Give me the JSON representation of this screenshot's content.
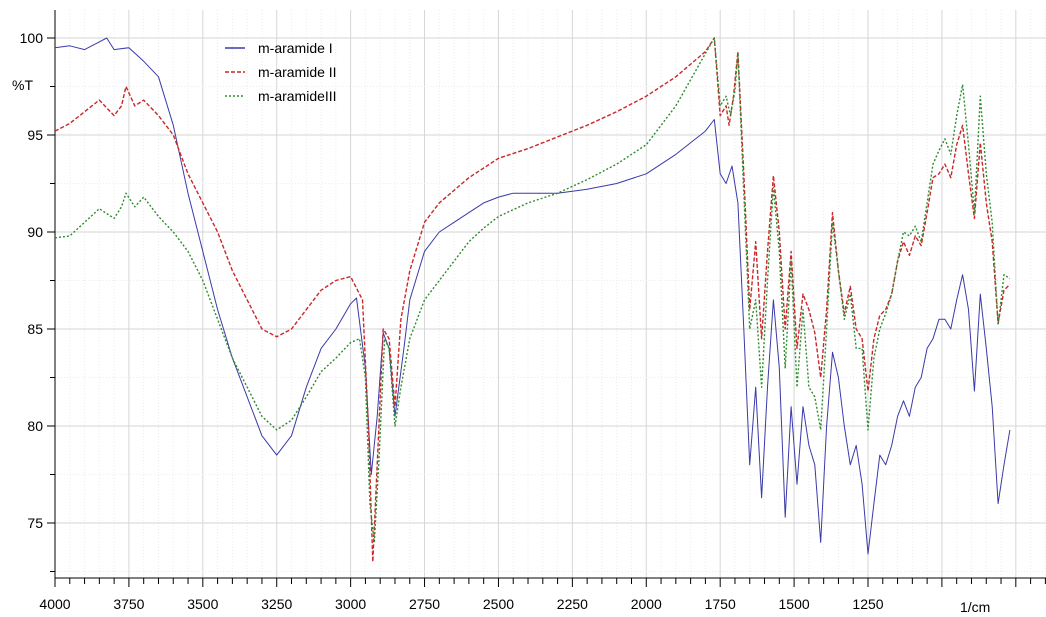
{
  "chart_data": {
    "type": "line",
    "title": "",
    "xlabel": "",
    "ylabel": "%T",
    "x_unit_label": "1/cm",
    "xlim": [
      4000,
      500
    ],
    "ylim": [
      72,
      101.5
    ],
    "x_reversed": true,
    "grid": true,
    "legend_position": "top-left",
    "x_tick_labels": [
      4000,
      3750,
      3500,
      3250,
      3000,
      2750,
      2500,
      2250,
      2000,
      1750,
      1500,
      1250
    ],
    "y_tick_labels": [
      100,
      95,
      90,
      85,
      80,
      75
    ],
    "series": [
      {
        "name": "m-aramide I",
        "color": "#3a3aa8",
        "dash": "solid",
        "points": [
          [
            4000,
            99.5
          ],
          [
            3950,
            99.6
          ],
          [
            3900,
            99.4
          ],
          [
            3850,
            99.8
          ],
          [
            3825,
            100.0
          ],
          [
            3800,
            99.4
          ],
          [
            3750,
            99.5
          ],
          [
            3700,
            98.8
          ],
          [
            3650,
            98.0
          ],
          [
            3600,
            95.5
          ],
          [
            3550,
            92.0
          ],
          [
            3500,
            89.0
          ],
          [
            3450,
            86.0
          ],
          [
            3400,
            83.5
          ],
          [
            3350,
            81.5
          ],
          [
            3300,
            79.5
          ],
          [
            3250,
            78.5
          ],
          [
            3200,
            79.5
          ],
          [
            3150,
            82.0
          ],
          [
            3100,
            84.0
          ],
          [
            3050,
            85.0
          ],
          [
            3000,
            86.3
          ],
          [
            2980,
            86.6
          ],
          [
            2950,
            83.0
          ],
          [
            2930,
            77.5
          ],
          [
            2910,
            80.5
          ],
          [
            2890,
            84.8
          ],
          [
            2870,
            84.0
          ],
          [
            2850,
            80.5
          ],
          [
            2820,
            84.0
          ],
          [
            2800,
            86.5
          ],
          [
            2750,
            89.0
          ],
          [
            2700,
            90.0
          ],
          [
            2650,
            90.5
          ],
          [
            2600,
            91.0
          ],
          [
            2550,
            91.5
          ],
          [
            2500,
            91.8
          ],
          [
            2450,
            92.0
          ],
          [
            2400,
            92.0
          ],
          [
            2300,
            92.0
          ],
          [
            2200,
            92.2
          ],
          [
            2100,
            92.5
          ],
          [
            2000,
            93.0
          ],
          [
            1900,
            94.0
          ],
          [
            1800,
            95.2
          ],
          [
            1770,
            95.8
          ],
          [
            1750,
            93.0
          ],
          [
            1730,
            92.5
          ],
          [
            1710,
            93.4
          ],
          [
            1690,
            91.5
          ],
          [
            1670,
            85.0
          ],
          [
            1650,
            78.0
          ],
          [
            1630,
            82.0
          ],
          [
            1610,
            76.3
          ],
          [
            1590,
            82.0
          ],
          [
            1570,
            86.5
          ],
          [
            1550,
            83.0
          ],
          [
            1530,
            75.3
          ],
          [
            1510,
            81.0
          ],
          [
            1490,
            77.0
          ],
          [
            1470,
            81.0
          ],
          [
            1450,
            79.0
          ],
          [
            1430,
            78.0
          ],
          [
            1410,
            74.0
          ],
          [
            1390,
            80.0
          ],
          [
            1370,
            83.8
          ],
          [
            1350,
            82.5
          ],
          [
            1330,
            80.0
          ],
          [
            1310,
            78.0
          ],
          [
            1290,
            79.0
          ],
          [
            1270,
            77.0
          ],
          [
            1250,
            73.4
          ],
          [
            1230,
            76.0
          ],
          [
            1210,
            78.5
          ],
          [
            1190,
            78.0
          ],
          [
            1170,
            79.0
          ],
          [
            1150,
            80.5
          ],
          [
            1130,
            81.3
          ],
          [
            1110,
            80.5
          ],
          [
            1090,
            82.0
          ],
          [
            1070,
            82.5
          ],
          [
            1050,
            84.0
          ],
          [
            1030,
            84.5
          ],
          [
            1010,
            85.5
          ],
          [
            990,
            85.5
          ],
          [
            970,
            85.0
          ],
          [
            950,
            86.5
          ],
          [
            930,
            87.8
          ],
          [
            910,
            86.0
          ],
          [
            890,
            81.8
          ],
          [
            870,
            86.8
          ],
          [
            850,
            84.0
          ],
          [
            830,
            81.0
          ],
          [
            810,
            76.0
          ],
          [
            790,
            78.0
          ],
          [
            770,
            79.8
          ]
        ]
      },
      {
        "name": "m-aramide II",
        "color": "#c8282a",
        "dash": "4,2",
        "points": [
          [
            4000,
            95.2
          ],
          [
            3950,
            95.6
          ],
          [
            3900,
            96.2
          ],
          [
            3850,
            96.8
          ],
          [
            3800,
            96.0
          ],
          [
            3775,
            96.5
          ],
          [
            3760,
            97.5
          ],
          [
            3730,
            96.5
          ],
          [
            3700,
            96.8
          ],
          [
            3650,
            96.0
          ],
          [
            3600,
            95.0
          ],
          [
            3550,
            93.0
          ],
          [
            3500,
            91.5
          ],
          [
            3450,
            90.0
          ],
          [
            3400,
            88.0
          ],
          [
            3350,
            86.5
          ],
          [
            3300,
            85.0
          ],
          [
            3250,
            84.6
          ],
          [
            3200,
            85.0
          ],
          [
            3150,
            86.0
          ],
          [
            3100,
            87.0
          ],
          [
            3050,
            87.5
          ],
          [
            3000,
            87.7
          ],
          [
            2960,
            86.5
          ],
          [
            2940,
            80.0
          ],
          [
            2925,
            73.0
          ],
          [
            2910,
            78.0
          ],
          [
            2890,
            85.0
          ],
          [
            2870,
            84.5
          ],
          [
            2850,
            81.0
          ],
          [
            2830,
            85.5
          ],
          [
            2800,
            88.0
          ],
          [
            2750,
            90.5
          ],
          [
            2700,
            91.5
          ],
          [
            2600,
            92.8
          ],
          [
            2500,
            93.8
          ],
          [
            2400,
            94.3
          ],
          [
            2300,
            94.9
          ],
          [
            2200,
            95.5
          ],
          [
            2100,
            96.2
          ],
          [
            2000,
            97.0
          ],
          [
            1900,
            98.0
          ],
          [
            1800,
            99.3
          ],
          [
            1770,
            100.0
          ],
          [
            1750,
            96.0
          ],
          [
            1730,
            96.5
          ],
          [
            1720,
            95.5
          ],
          [
            1705,
            97.0
          ],
          [
            1690,
            99.3
          ],
          [
            1670,
            93.0
          ],
          [
            1650,
            86.0
          ],
          [
            1630,
            89.5
          ],
          [
            1610,
            84.5
          ],
          [
            1590,
            89.0
          ],
          [
            1570,
            92.9
          ],
          [
            1550,
            90.0
          ],
          [
            1530,
            85.0
          ],
          [
            1510,
            89.0
          ],
          [
            1490,
            84.0
          ],
          [
            1470,
            86.8
          ],
          [
            1450,
            86.0
          ],
          [
            1430,
            84.8
          ],
          [
            1410,
            82.5
          ],
          [
            1390,
            86.0
          ],
          [
            1370,
            91.0
          ],
          [
            1350,
            88.0
          ],
          [
            1330,
            85.8
          ],
          [
            1310,
            87.2
          ],
          [
            1290,
            85.0
          ],
          [
            1270,
            84.5
          ],
          [
            1250,
            81.8
          ],
          [
            1230,
            84.5
          ],
          [
            1210,
            85.7
          ],
          [
            1190,
            86.0
          ],
          [
            1170,
            86.8
          ],
          [
            1150,
            88.5
          ],
          [
            1130,
            89.5
          ],
          [
            1110,
            88.8
          ],
          [
            1090,
            89.8
          ],
          [
            1070,
            89.3
          ],
          [
            1050,
            91.0
          ],
          [
            1030,
            92.8
          ],
          [
            1010,
            93.0
          ],
          [
            990,
            93.5
          ],
          [
            970,
            92.8
          ],
          [
            950,
            94.5
          ],
          [
            930,
            95.5
          ],
          [
            910,
            93.0
          ],
          [
            890,
            90.7
          ],
          [
            870,
            94.6
          ],
          [
            850,
            91.5
          ],
          [
            830,
            89.5
          ],
          [
            810,
            85.3
          ],
          [
            790,
            87.0
          ],
          [
            770,
            87.3
          ]
        ]
      },
      {
        "name": "m-aramideIII",
        "color": "#2e8b2e",
        "dash": "2,2",
        "points": [
          [
            4000,
            89.7
          ],
          [
            3950,
            89.8
          ],
          [
            3900,
            90.5
          ],
          [
            3850,
            91.2
          ],
          [
            3800,
            90.7
          ],
          [
            3775,
            91.3
          ],
          [
            3760,
            92.0
          ],
          [
            3730,
            91.3
          ],
          [
            3700,
            91.8
          ],
          [
            3650,
            90.8
          ],
          [
            3600,
            90.0
          ],
          [
            3550,
            89.0
          ],
          [
            3500,
            87.5
          ],
          [
            3450,
            85.5
          ],
          [
            3400,
            83.5
          ],
          [
            3350,
            82.0
          ],
          [
            3300,
            80.5
          ],
          [
            3250,
            79.8
          ],
          [
            3200,
            80.3
          ],
          [
            3150,
            81.5
          ],
          [
            3100,
            82.8
          ],
          [
            3050,
            83.5
          ],
          [
            3000,
            84.3
          ],
          [
            2970,
            84.5
          ],
          [
            2950,
            82.5
          ],
          [
            2935,
            76.0
          ],
          [
            2920,
            74.0
          ],
          [
            2905,
            78.0
          ],
          [
            2885,
            84.5
          ],
          [
            2870,
            84.0
          ],
          [
            2850,
            80.0
          ],
          [
            2830,
            82.0
          ],
          [
            2800,
            84.5
          ],
          [
            2750,
            86.5
          ],
          [
            2700,
            87.5
          ],
          [
            2650,
            88.5
          ],
          [
            2600,
            89.5
          ],
          [
            2550,
            90.2
          ],
          [
            2500,
            90.8
          ],
          [
            2400,
            91.5
          ],
          [
            2300,
            92.0
          ],
          [
            2200,
            92.7
          ],
          [
            2100,
            93.5
          ],
          [
            2000,
            94.5
          ],
          [
            1900,
            96.5
          ],
          [
            1800,
            99.2
          ],
          [
            1770,
            100.0
          ],
          [
            1750,
            96.5
          ],
          [
            1730,
            97.0
          ],
          [
            1715,
            96.0
          ],
          [
            1700,
            97.3
          ],
          [
            1690,
            99.2
          ],
          [
            1670,
            92.0
          ],
          [
            1650,
            85.0
          ],
          [
            1630,
            86.5
          ],
          [
            1610,
            82.0
          ],
          [
            1590,
            87.5
          ],
          [
            1570,
            92.3
          ],
          [
            1550,
            89.0
          ],
          [
            1530,
            83.0
          ],
          [
            1510,
            88.5
          ],
          [
            1490,
            82.0
          ],
          [
            1470,
            86.0
          ],
          [
            1450,
            82.0
          ],
          [
            1430,
            81.5
          ],
          [
            1410,
            79.8
          ],
          [
            1390,
            85.0
          ],
          [
            1370,
            90.5
          ],
          [
            1350,
            88.0
          ],
          [
            1330,
            85.5
          ],
          [
            1310,
            86.8
          ],
          [
            1290,
            84.0
          ],
          [
            1270,
            84.0
          ],
          [
            1250,
            79.8
          ],
          [
            1230,
            83.5
          ],
          [
            1210,
            85.0
          ],
          [
            1190,
            85.8
          ],
          [
            1170,
            86.8
          ],
          [
            1150,
            88.5
          ],
          [
            1130,
            90.0
          ],
          [
            1110,
            89.8
          ],
          [
            1090,
            90.3
          ],
          [
            1070,
            89.5
          ],
          [
            1050,
            91.5
          ],
          [
            1030,
            93.5
          ],
          [
            1010,
            94.2
          ],
          [
            990,
            94.8
          ],
          [
            970,
            94.0
          ],
          [
            950,
            96.0
          ],
          [
            930,
            97.6
          ],
          [
            910,
            94.5
          ],
          [
            890,
            91.0
          ],
          [
            870,
            97.0
          ],
          [
            850,
            93.0
          ],
          [
            830,
            90.5
          ],
          [
            810,
            85.2
          ],
          [
            790,
            87.8
          ],
          [
            770,
            87.6
          ]
        ]
      }
    ]
  }
}
